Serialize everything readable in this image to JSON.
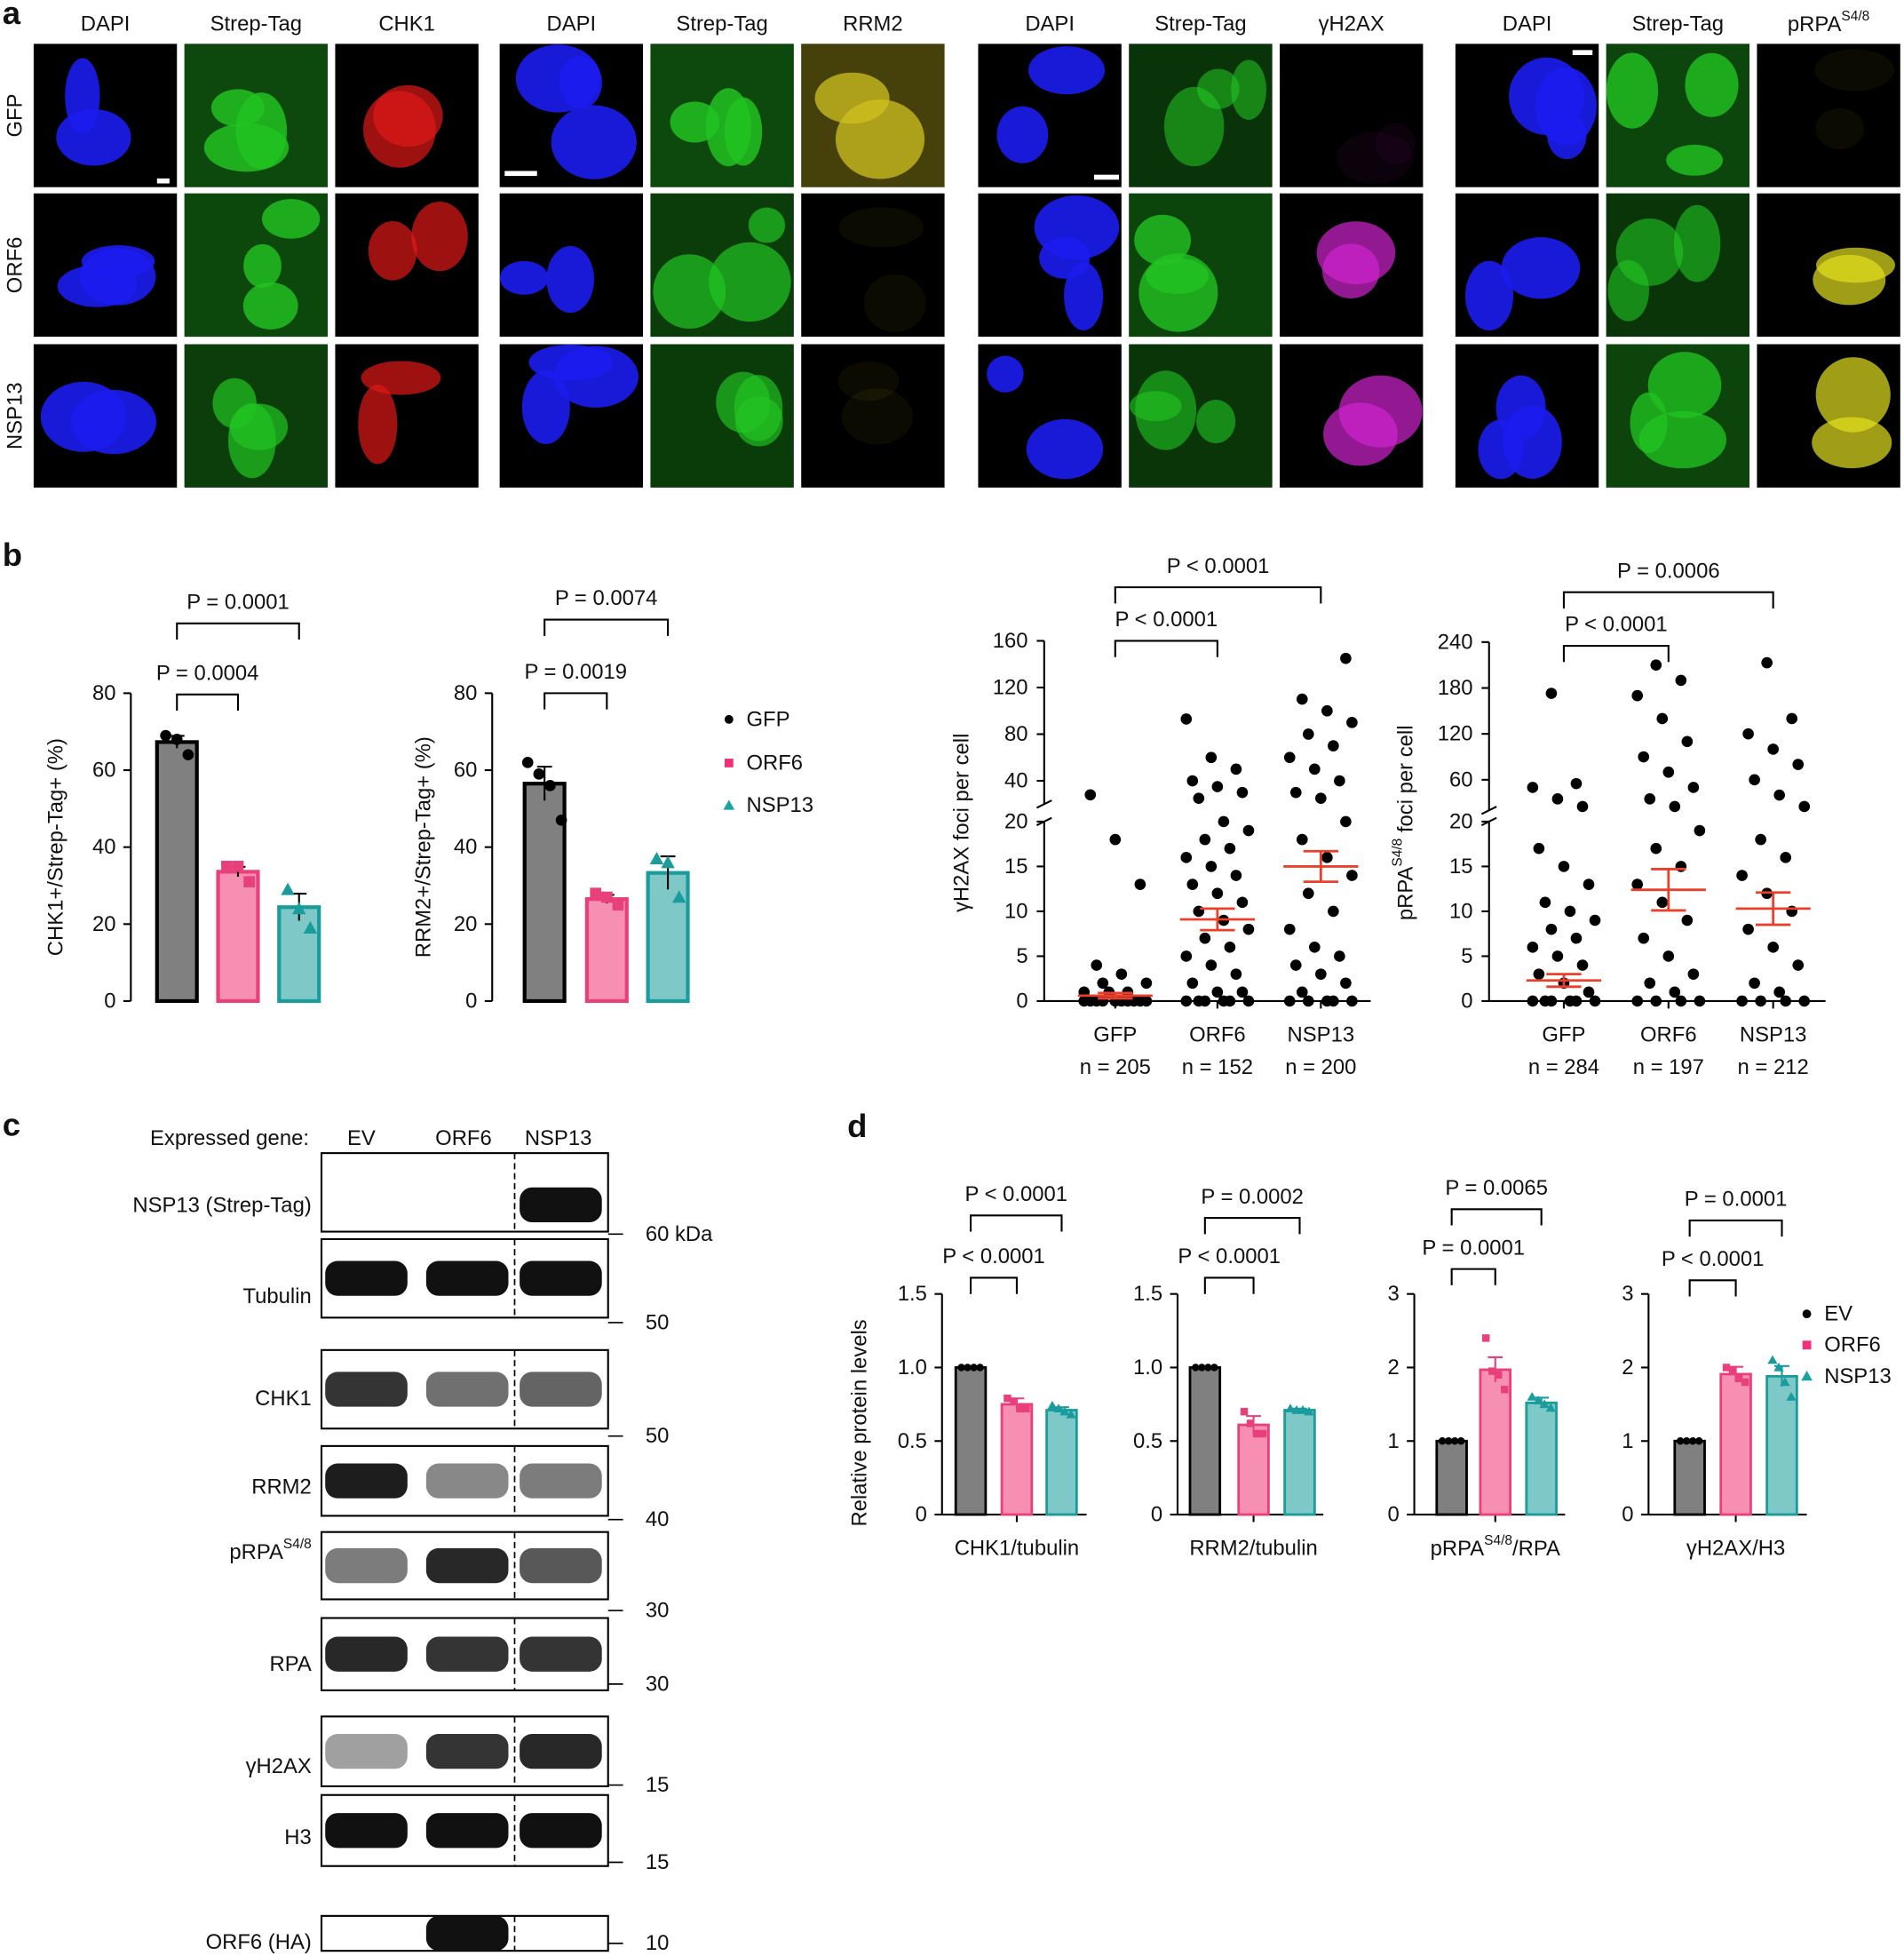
{
  "panel_labels": [
    "a",
    "b",
    "c",
    "d"
  ],
  "panel_a": {
    "rows": [
      "GFP",
      "ORF6",
      "NSP13"
    ],
    "groups": [
      {
        "channels": [
          "DAPI",
          "Strep-Tag",
          "CHK1"
        ]
      },
      {
        "channels": [
          "DAPI",
          "Strep-Tag",
          "RRM2"
        ]
      },
      {
        "channels": [
          "DAPI",
          "Strep-Tag",
          "γH2AX"
        ]
      },
      {
        "channels": [
          "DAPI",
          "Strep-Tag",
          {
            "text": "pRPA",
            "sup": "S4/8"
          }
        ]
      }
    ]
  },
  "chart_data": [
    {
      "type": "bar_dots",
      "ylabel": "CHK1+/Strep-Tag+ (%)",
      "ylim": [
        0,
        80
      ],
      "yticks": [
        0,
        20,
        40,
        60,
        80
      ],
      "annotations": [
        "P = 0.0004",
        "P = 0.0001"
      ],
      "series": [
        {
          "value": 67.3,
          "error": 1.6,
          "points": [
            69,
            68,
            64
          ],
          "fill": "#808080",
          "edge": "#000000"
        },
        {
          "value": 33.6,
          "error": 1.3,
          "points": [
            35,
            35,
            31
          ],
          "fill": "#f78fb3",
          "edge": "#e8407a"
        },
        {
          "value": 24.4,
          "error": 3.5,
          "points": [
            29,
            24,
            19
          ],
          "fill": "#7fc8c8",
          "edge": "#1a9c9c"
        }
      ]
    },
    {
      "type": "bar_dots",
      "ylabel": "RRM2+/Strep-Tag+ (%)",
      "ylim": [
        0,
        80
      ],
      "yticks": [
        0,
        20,
        40,
        60,
        80
      ],
      "annotations": [
        "P = 0.0019",
        "P = 0.0074"
      ],
      "series": [
        {
          "value": 56.5,
          "error": 4.4,
          "points": [
            62,
            59,
            56,
            47
          ],
          "fill": "#808080",
          "edge": "#000000"
        },
        {
          "value": 26.5,
          "error": 1.1,
          "points": [
            28,
            27,
            25
          ],
          "fill": "#f78fb3",
          "edge": "#e8407a"
        },
        {
          "value": 33.3,
          "error": 4.3,
          "points": [
            37,
            36,
            27
          ],
          "fill": "#7fc8c8",
          "edge": "#1a9c9c"
        }
      ],
      "legend": [
        {
          "name": "GFP",
          "color": "#000000"
        },
        {
          "name": "ORF6",
          "color": "#f0307a"
        },
        {
          "name": "NSP13",
          "color": "#1aa3a3"
        }
      ]
    },
    {
      "type": "dot_plot",
      "ylabel": "γH2AX foci per cell",
      "ylim": [
        0,
        20
      ],
      "yticks": [
        0,
        5,
        10,
        15,
        20
      ],
      "ylim_upper": [
        20,
        160
      ],
      "yticks_upper": [
        40,
        80,
        120,
        160
      ],
      "categories": [
        "GFP",
        "ORF6",
        "NSP13"
      ],
      "n_labels": [
        "n = 205",
        "n = 152",
        "n = 200"
      ],
      "annotations": [
        "P < 0.0001",
        "P < 0.0001"
      ],
      "mean_color": "#e8402a",
      "groups": [
        {
          "mean": 0.6,
          "sem": 0.3,
          "points": [
            0,
            0,
            0,
            0,
            0,
            0,
            0,
            0,
            0,
            0,
            1,
            1,
            1,
            2,
            2,
            3,
            4,
            13,
            18,
            28
          ]
        },
        {
          "mean": 9.1,
          "sem": 1.2,
          "points": [
            0,
            0,
            0,
            0,
            0,
            0,
            1,
            1,
            2,
            3,
            4,
            5,
            6,
            7,
            8,
            9,
            10,
            11,
            12,
            13,
            14,
            15,
            16,
            17,
            18,
            19,
            20,
            25,
            30,
            35,
            40,
            50,
            60,
            93
          ]
        },
        {
          "mean": 15,
          "sem": 1.7,
          "points": [
            0,
            0,
            0,
            0,
            0,
            1,
            2,
            3,
            4,
            5,
            6,
            8,
            10,
            12,
            14,
            16,
            18,
            20,
            25,
            30,
            40,
            50,
            60,
            70,
            80,
            90,
            100,
            110,
            145
          ]
        }
      ]
    },
    {
      "type": "dot_plot",
      "ylabel": {
        "text": "pRPA",
        "sup": "S4/8",
        "after": " foci per cell"
      },
      "ylim": [
        0,
        20
      ],
      "yticks": [
        0,
        5,
        10,
        15,
        20
      ],
      "ylim_upper": [
        20,
        240
      ],
      "yticks_upper": [
        60,
        120,
        180,
        240
      ],
      "categories": [
        "GFP",
        "ORF6",
        "NSP13"
      ],
      "n_labels": [
        "n = 284",
        "n = 197",
        "n = 212"
      ],
      "annotations": [
        "P < 0.0001",
        "P = 0.0006"
      ],
      "mean_color": "#e8402a",
      "groups": [
        {
          "mean": 2.3,
          "sem": 0.7,
          "points": [
            0,
            0,
            0,
            0,
            0,
            0,
            1,
            2,
            3,
            4,
            5,
            6,
            7,
            8,
            9,
            10,
            11,
            13,
            15,
            17,
            25,
            35,
            50,
            55,
            173
          ]
        },
        {
          "mean": 12.4,
          "sem": 2.3,
          "points": [
            0,
            0,
            0,
            0,
            1,
            2,
            3,
            5,
            7,
            9,
            11,
            13,
            15,
            17,
            19,
            25,
            35,
            50,
            70,
            90,
            110,
            140,
            170,
            190,
            210
          ]
        },
        {
          "mean": 10.3,
          "sem": 1.8,
          "points": [
            0,
            0,
            0,
            0,
            1,
            2,
            4,
            6,
            8,
            10,
            12,
            14,
            16,
            18,
            25,
            40,
            60,
            80,
            100,
            120,
            140,
            213
          ]
        }
      ]
    },
    {
      "type": "bar_dots",
      "ylabel": "Relative protein levels",
      "xlabel": "CHK1/tubulin",
      "ylim": [
        0,
        1.5
      ],
      "yticks": [
        0,
        0.5,
        {
          "value": 1,
          "label": "1.0"
        },
        1.5
      ],
      "annotations": [
        "P < 0.0001",
        "P < 0.0001"
      ],
      "series": [
        {
          "value": 1,
          "error": 0,
          "points": [
            1,
            1,
            1,
            1
          ],
          "fill": "#808080",
          "edge": "#000000"
        },
        {
          "value": 0.75,
          "error": 0.04,
          "points": [
            0.79,
            0.77,
            0.72,
            0.72
          ],
          "fill": "#f78fb3",
          "edge": "#e8407a"
        },
        {
          "value": 0.71,
          "error": 0.02,
          "points": [
            0.74,
            0.72,
            0.7,
            0.68
          ],
          "fill": "#7fc8c8",
          "edge": "#1a9c9c"
        }
      ]
    },
    {
      "type": "bar_dots",
      "xlabel": "RRM2/tubulin",
      "ylim": [
        0,
        1.5
      ],
      "yticks": [
        0,
        0.5,
        {
          "value": 1,
          "label": "1.0"
        },
        1.5
      ],
      "annotations": [
        "P < 0.0001",
        "P = 0.0002"
      ],
      "series": [
        {
          "value": 1,
          "error": 0,
          "points": [
            1,
            1,
            1,
            1
          ],
          "fill": "#808080",
          "edge": "#000000"
        },
        {
          "value": 0.61,
          "error": 0.06,
          "points": [
            0.7,
            0.62,
            0.55,
            0.55
          ],
          "fill": "#f78fb3",
          "edge": "#e8407a"
        },
        {
          "value": 0.71,
          "error": 0.01,
          "points": [
            0.72,
            0.71,
            0.71,
            0.7
          ],
          "fill": "#7fc8c8",
          "edge": "#1a9c9c"
        }
      ]
    },
    {
      "type": "bar_dots",
      "xlabel": {
        "text": "pRPA",
        "sup": "S4/8",
        "after": "/RPA"
      },
      "ylim": [
        0,
        3
      ],
      "yticks": [
        0,
        1,
        2,
        3
      ],
      "annotations": [
        "P = 0.0001",
        "P = 0.0065"
      ],
      "series": [
        {
          "value": 1,
          "error": 0,
          "points": [
            1,
            1,
            1,
            1
          ],
          "fill": "#808080",
          "edge": "#000000"
        },
        {
          "value": 1.97,
          "error": 0.17,
          "points": [
            2.4,
            1.95,
            1.9,
            1.7
          ],
          "fill": "#f78fb3",
          "edge": "#e8407a"
        },
        {
          "value": 1.52,
          "error": 0.07,
          "points": [
            1.6,
            1.55,
            1.5,
            1.45
          ],
          "fill": "#7fc8c8",
          "edge": "#1a9c9c"
        }
      ]
    },
    {
      "type": "bar_dots",
      "xlabel": "γH2AX/H3",
      "ylim": [
        0,
        3
      ],
      "yticks": [
        0,
        1,
        2,
        3
      ],
      "annotations": [
        "P < 0.0001",
        "P = 0.0001"
      ],
      "series": [
        {
          "value": 1,
          "error": 0,
          "points": [
            1,
            1,
            1,
            1
          ],
          "fill": "#808080",
          "edge": "#000000"
        },
        {
          "value": 1.91,
          "error": 0.1,
          "points": [
            2.0,
            1.95,
            1.85,
            1.8
          ],
          "fill": "#f78fb3",
          "edge": "#e8407a"
        },
        {
          "value": 1.88,
          "error": 0.14,
          "points": [
            2.1,
            2.0,
            1.8,
            1.6
          ],
          "fill": "#7fc8c8",
          "edge": "#1a9c9c"
        }
      ],
      "legend": [
        {
          "name": "EV",
          "color": "#000000"
        },
        {
          "name": "ORF6",
          "color": "#f0307a"
        },
        {
          "name": "NSP13",
          "color": "#1aa3a3"
        }
      ]
    }
  ],
  "panel_c": {
    "header": "Expressed gene:",
    "lanes": [
      "EV",
      "ORF6",
      "NSP13"
    ],
    "blots": [
      {
        "label": "NSP13 (Strep-Tag)",
        "marker": "60 kDa"
      },
      {
        "label": "Tubulin",
        "marker": "50"
      },
      {
        "label": "CHK1",
        "marker": "50"
      },
      {
        "label": "RRM2",
        "marker": "40"
      },
      {
        "label": {
          "text": "pRPA",
          "sup": "S4/8"
        },
        "marker": "30"
      },
      {
        "label": "RPA",
        "marker": "30"
      },
      {
        "label": "γH2AX",
        "marker": "15"
      },
      {
        "label": "H3",
        "marker": "15"
      },
      {
        "label": "ORF6 (HA)",
        "marker": "10"
      }
    ]
  }
}
